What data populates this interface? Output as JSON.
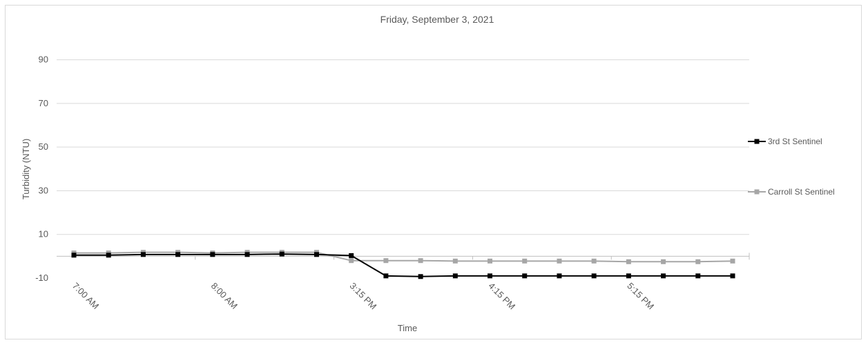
{
  "chart_data": {
    "type": "line",
    "title": "Friday, September 3, 2021",
    "xlabel": "Time",
    "ylabel": "Turbidity (NTU)",
    "ylim": [
      -10,
      100
    ],
    "yticks": [
      -10,
      10,
      30,
      50,
      70,
      90
    ],
    "grid": true,
    "legend_position": "right",
    "x_tick_labels": [
      {
        "index": 0,
        "label": "7:00 AM"
      },
      {
        "index": 4,
        "label": "8:00 AM"
      },
      {
        "index": 8,
        "label": "3:15 PM"
      },
      {
        "index": 12,
        "label": "4:15 PM"
      },
      {
        "index": 16,
        "label": "5:15 PM"
      }
    ],
    "series": [
      {
        "name": "3rd St Sentinel",
        "color": "#000000",
        "values": [
          0.5,
          0.5,
          0.8,
          0.8,
          0.8,
          0.8,
          1.0,
          0.8,
          0.3,
          -9.0,
          -9.3,
          -9.0,
          -9.0,
          -9.0,
          -9.0,
          -9.0,
          -9.0,
          -9.0,
          -9.0,
          -9.0
        ]
      },
      {
        "name": "Carroll St Sentinel",
        "color": "#a6a6a6",
        "values": [
          1.5,
          1.5,
          1.8,
          1.8,
          1.5,
          1.8,
          1.8,
          1.8,
          -2.0,
          -2.0,
          -2.0,
          -2.2,
          -2.2,
          -2.2,
          -2.2,
          -2.2,
          -2.5,
          -2.5,
          -2.5,
          -2.2
        ]
      }
    ]
  }
}
